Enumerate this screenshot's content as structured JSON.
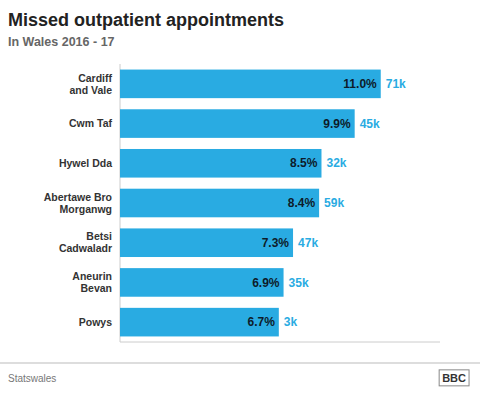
{
  "chart_data": {
    "type": "bar",
    "orientation": "horizontal",
    "title": "Missed outpatient appointments",
    "subtitle": "In Wales 2016 - 17",
    "categories": [
      "Cardiff\nand Vale",
      "Cwm Taf",
      "Hywel Dda",
      "Abertawe Bro\nMorganwg",
      "Betsi\nCadwaladr",
      "Aneurin\nBevan",
      "Powys"
    ],
    "values": [
      11.0,
      9.9,
      8.5,
      8.4,
      7.3,
      6.9,
      6.7
    ],
    "value_labels": [
      "11.0%",
      "9.9%",
      "8.5%",
      "8.4%",
      "7.3%",
      "6.9%",
      "6.7%"
    ],
    "data_labels": true,
    "count_labels": [
      "71k",
      "45k",
      "32k",
      "59k",
      "47k",
      "35k",
      "3k"
    ],
    "color": "#29abe2",
    "xlim": [
      0,
      13.5
    ],
    "tick_labels": "y",
    "grid": false,
    "source": "Statswales",
    "logo": "BBC"
  }
}
